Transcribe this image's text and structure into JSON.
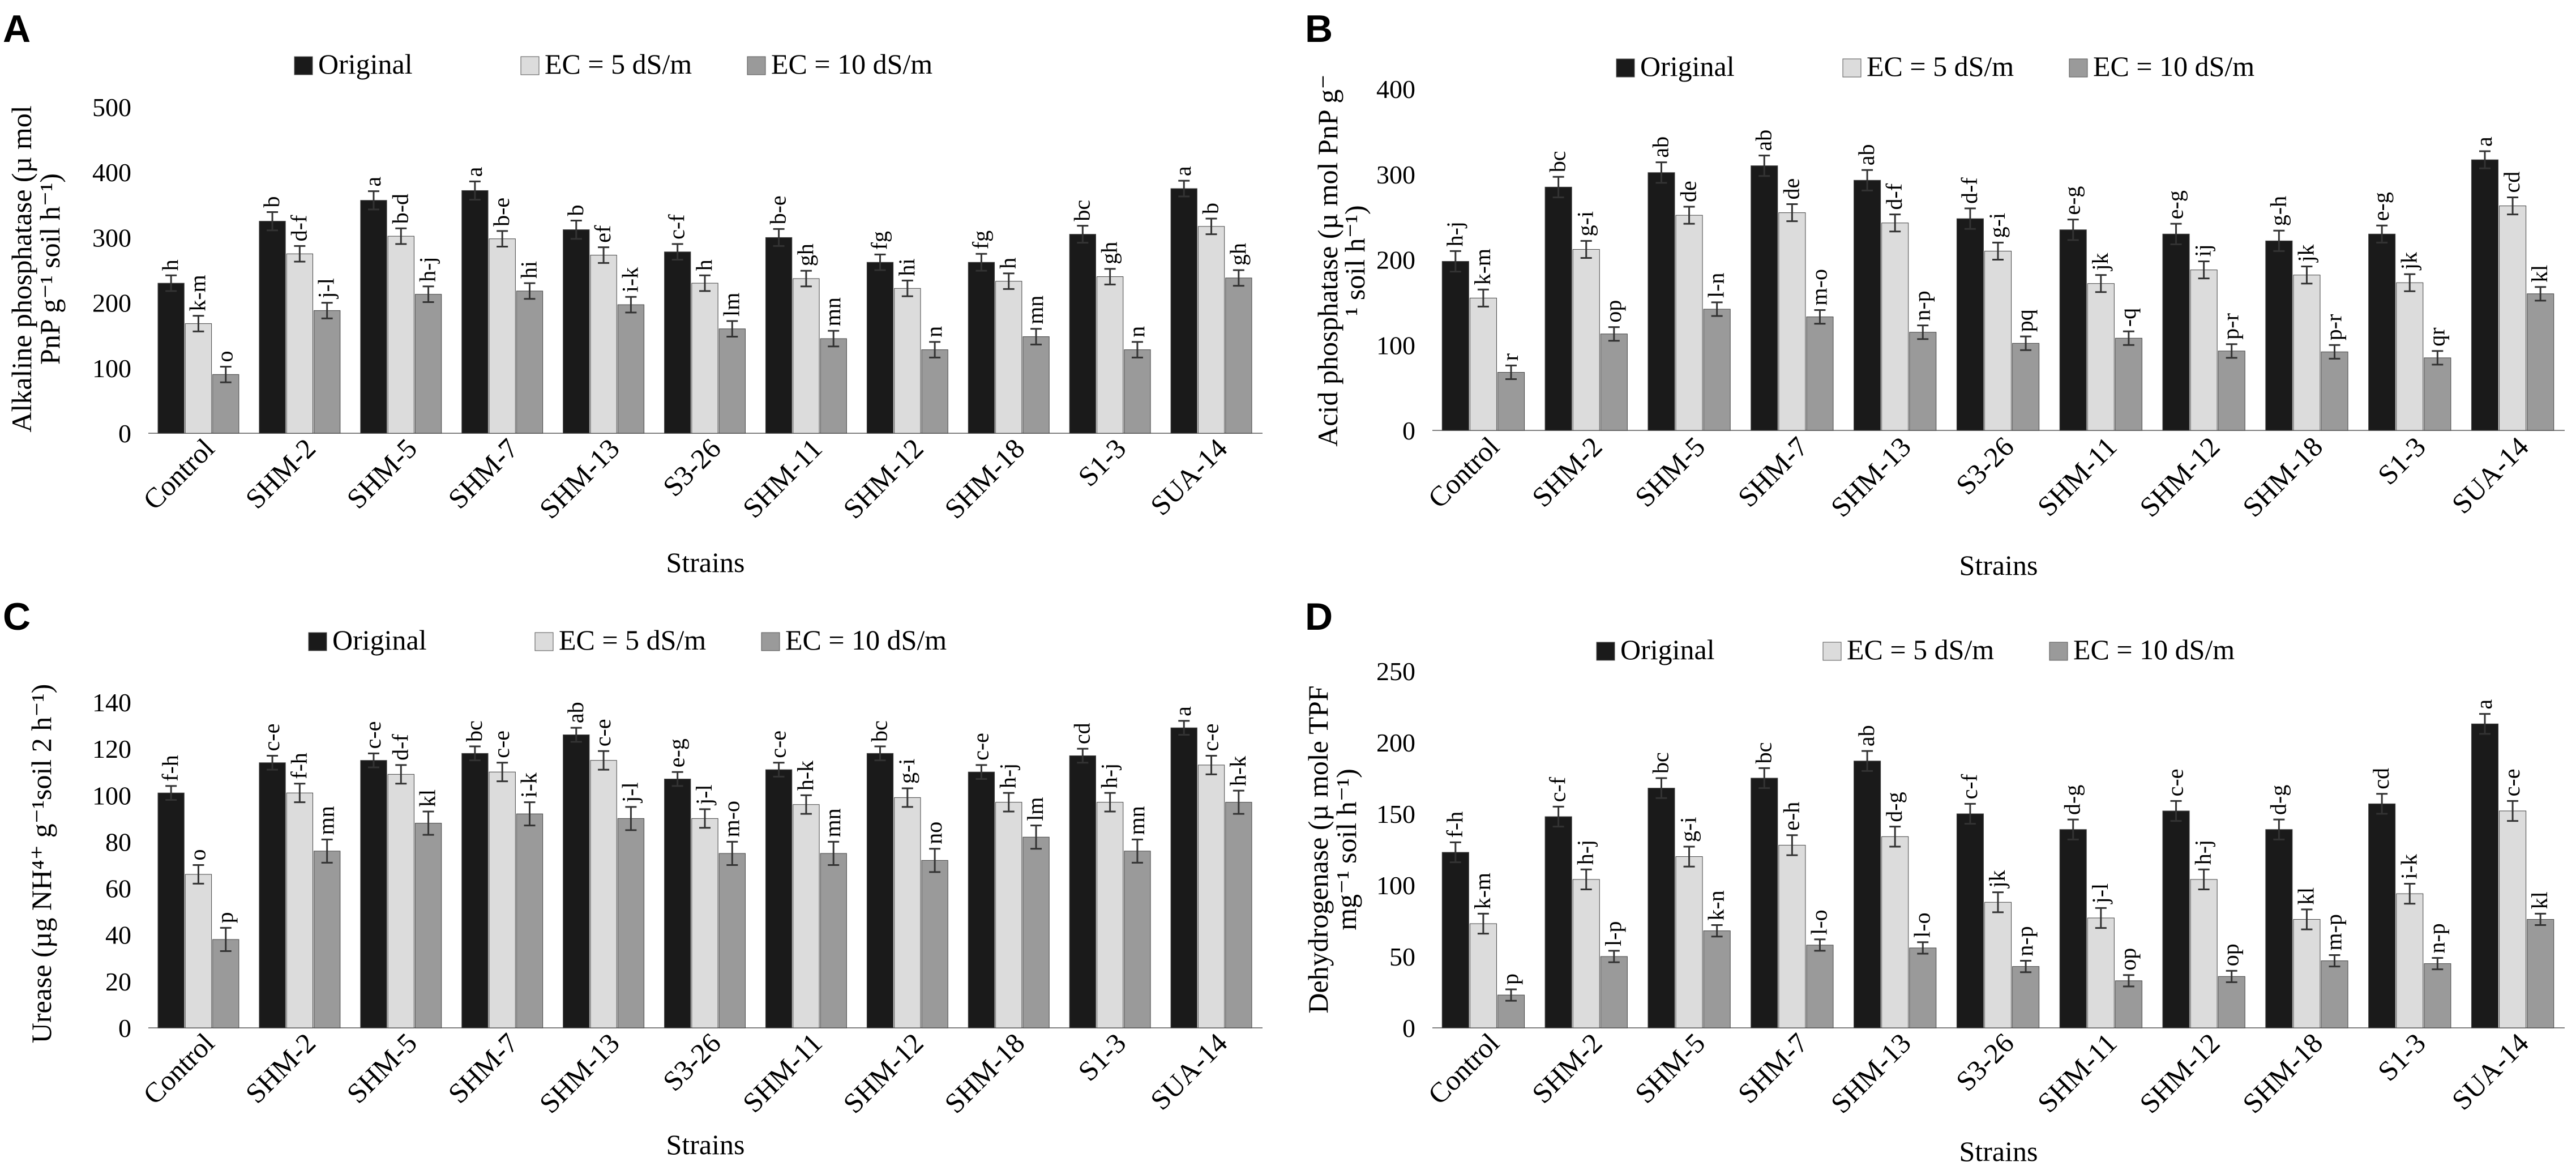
{
  "colors": {
    "original": "#1a1a1a",
    "ec5": "#dcdcdc",
    "ec10": "#9a9a9a",
    "axis": "#808080"
  },
  "legend": [
    "Original",
    "EC = 5 dS/m",
    "EC = 10 dS/m"
  ],
  "chart_data": [
    {
      "type": "bar",
      "panel": "A",
      "xlabel": "Strains",
      "ylabel_lines": [
        "Alkaline phosphatase (µ mol",
        "PnP g⁻¹ soil h⁻¹)"
      ],
      "ylim": [
        0,
        500
      ],
      "yticks": [
        0,
        100,
        200,
        300,
        400,
        500
      ],
      "categories": [
        "Control",
        "SHM-2",
        "SHM-5",
        "SHM-7",
        "SHM-13",
        "S3-26",
        "SHM-11",
        "SHM-12",
        "SHM-18",
        "S1-3",
        "SUA-14"
      ],
      "series": [
        {
          "name": "Original",
          "values": [
            230,
            325,
            357,
            372,
            312,
            278,
            300,
            262,
            262,
            305,
            375
          ],
          "errors": [
            12,
            14,
            14,
            14,
            14,
            12,
            13,
            12,
            13,
            13,
            12
          ],
          "labels": [
            "h",
            "b",
            "a",
            "a",
            "b",
            "c-f",
            "b-e",
            "fg",
            "fg",
            "bc",
            "a"
          ]
        },
        {
          "name": "EC = 5 dS/m",
          "values": [
            168,
            275,
            302,
            298,
            273,
            230,
            237,
            222,
            233,
            240,
            317
          ],
          "errors": [
            12,
            12,
            12,
            12,
            12,
            12,
            12,
            12,
            12,
            12,
            12
          ],
          "labels": [
            "k-m",
            "d-f",
            "b-d",
            "b-e",
            "ef",
            "h",
            "gh",
            "hi",
            "h",
            "gh",
            "b"
          ]
        },
        {
          "name": "EC = 10 dS/m",
          "values": [
            90,
            188,
            213,
            218,
            197,
            160,
            145,
            128,
            148,
            128,
            238
          ],
          "errors": [
            12,
            12,
            12,
            12,
            12,
            12,
            12,
            12,
            12,
            12,
            12
          ],
          "labels": [
            "o",
            "j-l",
            "h-j",
            "hi",
            "i-k",
            "lm",
            "mn",
            "n",
            "mn",
            "n",
            "gh"
          ]
        }
      ]
    },
    {
      "type": "bar",
      "panel": "B",
      "xlabel": "Strains",
      "ylabel_lines": [
        "Acid phosphatase (µ mol PnP g⁻",
        "¹ soil h⁻¹)"
      ],
      "ylim": [
        0,
        400
      ],
      "yticks": [
        0,
        100,
        200,
        300,
        400
      ],
      "categories": [
        "Control",
        "SHM-2",
        "SHM-5",
        "SHM-7",
        "SHM-13",
        "S3-26",
        "SHM-11",
        "SHM-12",
        "SHM-18",
        "S1-3",
        "SUA-14"
      ],
      "series": [
        {
          "name": "Original",
          "values": [
            198,
            285,
            302,
            310,
            293,
            248,
            235,
            230,
            222,
            230,
            317
          ],
          "errors": [
            12,
            12,
            12,
            12,
            12,
            12,
            12,
            12,
            12,
            10,
            10
          ],
          "labels": [
            "h-j",
            "bc",
            "ab",
            "ab",
            "ab",
            "d-f",
            "e-g",
            "e-g",
            "g-h",
            "e-g",
            "a"
          ]
        },
        {
          "name": "EC = 5 dS/m",
          "values": [
            155,
            212,
            252,
            255,
            243,
            210,
            172,
            188,
            182,
            173,
            263
          ],
          "errors": [
            10,
            10,
            10,
            10,
            10,
            10,
            10,
            10,
            10,
            10,
            10
          ],
          "labels": [
            "k-m",
            "g-i",
            "de",
            "de",
            "d-f",
            "g-i",
            "jk",
            "ij",
            "jk",
            "jk",
            "cd"
          ]
        },
        {
          "name": "EC = 10 dS/m",
          "values": [
            68,
            113,
            142,
            133,
            115,
            102,
            108,
            93,
            92,
            85,
            160
          ],
          "errors": [
            8,
            8,
            8,
            8,
            8,
            8,
            8,
            8,
            8,
            8,
            8
          ],
          "labels": [
            "r",
            "op",
            "l-n",
            "m-o",
            "n-p",
            "pq",
            "-q",
            "p-r",
            "p-r",
            "qr",
            "kl"
          ]
        }
      ]
    },
    {
      "type": "bar",
      "panel": "C",
      "xlabel": "Strains",
      "ylabel_lines": [
        "Urease (µg NH⁴⁺ g⁻¹soil 2 h⁻¹)"
      ],
      "ylim": [
        0,
        140
      ],
      "yticks": [
        0,
        20,
        40,
        60,
        80,
        100,
        120,
        140
      ],
      "categories": [
        "Control",
        "SHM-2",
        "SHM-5",
        "SHM-7",
        "SHM-13",
        "S3-26",
        "SHM-11",
        "SHM-12",
        "SHM-18",
        "S1-3",
        "SUA-14"
      ],
      "series": [
        {
          "name": "Original",
          "values": [
            101,
            114,
            115,
            118,
            126,
            107,
            111,
            118,
            110,
            117,
            129
          ],
          "errors": [
            3,
            3,
            3,
            3,
            3,
            3,
            3,
            3,
            3,
            3,
            3
          ],
          "labels": [
            "f-h",
            "c-e",
            "c-e",
            "bc",
            "ab",
            "e-g",
            "c-e",
            "bc",
            "c-e",
            "cd",
            "a"
          ]
        },
        {
          "name": "EC = 5 dS/m",
          "values": [
            66,
            101,
            109,
            110,
            115,
            90,
            96,
            99,
            97,
            97,
            113
          ],
          "errors": [
            4,
            4,
            4,
            4,
            4,
            4,
            4,
            4,
            4,
            4,
            4
          ],
          "labels": [
            "o",
            "f-h",
            "d-f",
            "c-e",
            "c-e",
            "j-l",
            "h-k",
            "g-i",
            "h-j",
            "h-j",
            "c-e"
          ]
        },
        {
          "name": "EC = 10 dS/m",
          "values": [
            38,
            76,
            88,
            92,
            90,
            75,
            75,
            72,
            82,
            76,
            97
          ],
          "errors": [
            5,
            5,
            5,
            5,
            5,
            5,
            5,
            5,
            5,
            5,
            5
          ],
          "labels": [
            "p",
            "mn",
            "kl",
            "i-k",
            "j-l",
            "m-o",
            "mn",
            "no",
            "lm",
            "mn",
            "h-k"
          ]
        }
      ]
    },
    {
      "type": "bar",
      "panel": "D",
      "xlabel": "Strains",
      "ylabel_lines": [
        "Dehydrogenase (µ mole TPF",
        "mg⁻¹ soil h⁻¹)"
      ],
      "ylim": [
        0,
        250
      ],
      "yticks": [
        0,
        50,
        100,
        150,
        200,
        250
      ],
      "categories": [
        "Control",
        "SHM-2",
        "SHM-5",
        "SHM-7",
        "SHM-13",
        "S3-26",
        "SHM-11",
        "SHM-12",
        "SHM-18",
        "S1-3",
        "SUA-14"
      ],
      "series": [
        {
          "name": "Original",
          "values": [
            123,
            148,
            168,
            175,
            187,
            150,
            139,
            152,
            139,
            157,
            213
          ],
          "errors": [
            7,
            7,
            7,
            7,
            7,
            7,
            7,
            7,
            7,
            7,
            7
          ],
          "labels": [
            "f-h",
            "c-f",
            "bc",
            "bc",
            "ab",
            "c-f",
            "d-g",
            "c-e",
            "d-g",
            "cd",
            "a"
          ]
        },
        {
          "name": "EC = 5 dS/m",
          "values": [
            73,
            104,
            120,
            128,
            134,
            88,
            77,
            104,
            76,
            94,
            152
          ],
          "errors": [
            7,
            7,
            7,
            7,
            7,
            7,
            7,
            7,
            7,
            7,
            7
          ],
          "labels": [
            "k-m",
            "h-j",
            "g-i",
            "e-h",
            "d-g",
            "jk",
            "j-l",
            "h-j",
            "kl",
            "i-k",
            "c-e"
          ]
        },
        {
          "name": "EC = 10 dS/m",
          "values": [
            23,
            50,
            68,
            58,
            56,
            43,
            33,
            36,
            47,
            45,
            76
          ],
          "errors": [
            4,
            4,
            4,
            4,
            4,
            4,
            4,
            4,
            4,
            4,
            4
          ],
          "labels": [
            "p",
            "l-p",
            "k-n",
            "l-o",
            "l-o",
            "n-p",
            "op",
            "op",
            "m-p",
            "n-p",
            "kl"
          ]
        }
      ]
    }
  ]
}
